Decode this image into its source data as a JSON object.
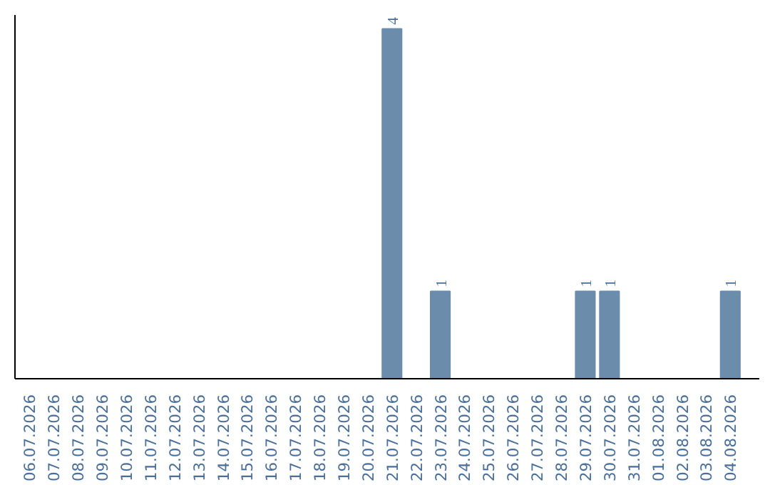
{
  "chart_data": {
    "type": "bar",
    "categories": [
      "06.07.2026",
      "07.07.2026",
      "08.07.2026",
      "09.07.2026",
      "10.07.2026",
      "11.07.2026",
      "12.07.2026",
      "13.07.2026",
      "14.07.2026",
      "15.07.2026",
      "16.07.2026",
      "17.07.2026",
      "18.07.2026",
      "19.07.2026",
      "20.07.2026",
      "21.07.2026",
      "22.07.2026",
      "23.07.2026",
      "24.07.2026",
      "25.07.2026",
      "26.07.2026",
      "27.07.2026",
      "28.07.2026",
      "29.07.2026",
      "30.07.2026",
      "31.07.2026",
      "01.08.2026",
      "02.08.2026",
      "03.08.2026",
      "04.08.2026"
    ],
    "values": [
      null,
      null,
      null,
      null,
      null,
      null,
      null,
      null,
      null,
      null,
      null,
      null,
      null,
      null,
      null,
      4,
      null,
      1,
      null,
      null,
      null,
      null,
      null,
      1,
      1,
      null,
      null,
      null,
      null,
      1
    ],
    "value_labels": [
      null,
      null,
      null,
      null,
      null,
      null,
      null,
      null,
      null,
      null,
      null,
      null,
      null,
      null,
      null,
      "4",
      null,
      "1",
      null,
      null,
      null,
      null,
      null,
      "1",
      "1",
      null,
      null,
      null,
      null,
      "1"
    ],
    "color": "#6b8cab",
    "tick_labels": "x"
  }
}
